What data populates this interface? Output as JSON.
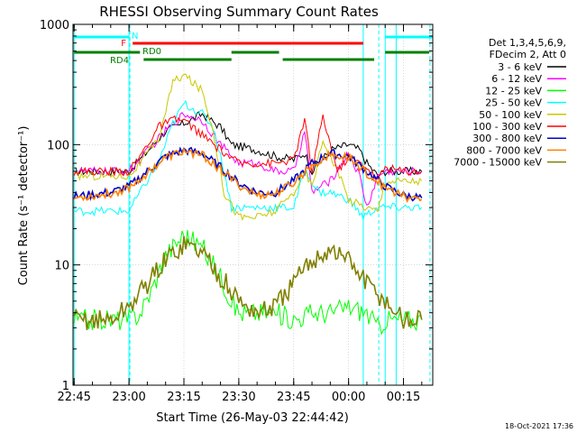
{
  "chart_data": {
    "type": "line",
    "title": "RHESSI Observing Summary Count Rates",
    "xlabel": "Start Time (26-May-03 22:44:42)",
    "ylabel": "Count Rate (s⁻¹ detector⁻¹)",
    "yscale": "log",
    "ylim": [
      1,
      1000
    ],
    "xlim": [
      "22:45",
      "00:23"
    ],
    "yticks": [
      "1",
      "10",
      "100",
      "1000"
    ],
    "xticks": [
      "22:45",
      "23:00",
      "23:15",
      "23:30",
      "23:45",
      "00:00",
      "00:15"
    ],
    "grid": true,
    "legend_header": [
      "Det 1,3,4,5,6,9,",
      "FDecim 2, Att 0"
    ],
    "footer_date": "18-Oct-2021 17:36",
    "series": [
      {
        "name": "3 - 6 keV",
        "color": "#000000",
        "x": [
          "22:45",
          "23:00",
          "23:03",
          "23:10",
          "23:15",
          "23:20",
          "23:25",
          "23:28",
          "23:35",
          "23:40",
          "23:45",
          "23:48",
          "23:50",
          "23:55",
          "00:00",
          "00:03",
          "00:05",
          "00:08",
          "00:10",
          "00:15",
          "00:20"
        ],
        "values": [
          60,
          60,
          75,
          130,
          150,
          180,
          140,
          100,
          90,
          80,
          75,
          85,
          60,
          90,
          100,
          90,
          70,
          55,
          60,
          60,
          60
        ]
      },
      {
        "name": "6 - 12 keV",
        "color": "#ff00ff",
        "x": [
          "22:45",
          "23:00",
          "23:03",
          "23:10",
          "23:15",
          "23:20",
          "23:25",
          "23:30",
          "23:35",
          "23:40",
          "23:45",
          "23:48",
          "23:50",
          "23:55",
          "00:00",
          "00:03",
          "00:05",
          "00:08",
          "00:10",
          "00:15",
          "00:20"
        ],
        "values": [
          60,
          60,
          75,
          130,
          180,
          160,
          100,
          70,
          70,
          60,
          60,
          130,
          40,
          50,
          85,
          55,
          30,
          55,
          60,
          60,
          60
        ]
      },
      {
        "name": "12 - 25 keV",
        "color": "#00ff00",
        "x": [
          "22:45",
          "23:00",
          "23:03",
          "23:06",
          "23:10",
          "23:15",
          "23:20",
          "23:25",
          "23:28",
          "23:30",
          "23:40",
          "23:45",
          "23:50",
          "23:55",
          "00:00",
          "00:05",
          "00:08",
          "00:10",
          "00:15",
          "00:20"
        ],
        "values": [
          3.5,
          3.5,
          4,
          6,
          12,
          18,
          14,
          8,
          5,
          4,
          4,
          3.5,
          4,
          4,
          4.5,
          4,
          3,
          3.5,
          3.5,
          3.5
        ]
      },
      {
        "name": "25 - 50 keV",
        "color": "#00ffff",
        "x": [
          "22:45",
          "23:00",
          "23:03",
          "23:08",
          "23:12",
          "23:15",
          "23:20",
          "23:23",
          "23:26",
          "23:28",
          "23:35",
          "23:40",
          "23:45",
          "23:48",
          "23:52",
          "23:55",
          "00:00",
          "00:04",
          "00:08",
          "00:10",
          "00:15",
          "00:20"
        ],
        "values": [
          28,
          28,
          40,
          70,
          150,
          220,
          180,
          140,
          60,
          30,
          30,
          30,
          30,
          60,
          40,
          40,
          35,
          25,
          30,
          30,
          30,
          30
        ]
      },
      {
        "name": "50 - 100 keV",
        "color": "#c8c800",
        "x": [
          "22:45",
          "23:00",
          "23:03",
          "23:08",
          "23:12",
          "23:15",
          "23:20",
          "23:23",
          "23:26",
          "23:30",
          "23:35",
          "23:40",
          "23:45",
          "23:48",
          "23:50",
          "23:53",
          "23:57",
          "00:00",
          "00:05",
          "00:08",
          "00:10",
          "00:15",
          "00:20"
        ],
        "values": [
          55,
          55,
          70,
          110,
          330,
          380,
          280,
          130,
          40,
          25,
          25,
          28,
          40,
          60,
          45,
          110,
          60,
          35,
          30,
          28,
          50,
          50,
          50
        ]
      },
      {
        "name": "100 - 300 keV",
        "color": "#ff0000",
        "x": [
          "22:45",
          "23:00",
          "23:03",
          "23:08",
          "23:12",
          "23:15",
          "23:20",
          "23:25",
          "23:30",
          "23:40",
          "23:45",
          "23:48",
          "23:50",
          "23:53",
          "23:57",
          "00:00",
          "00:05",
          "00:08",
          "00:10",
          "00:15",
          "00:20"
        ],
        "values": [
          60,
          60,
          80,
          140,
          160,
          160,
          120,
          90,
          70,
          70,
          75,
          160,
          60,
          170,
          60,
          80,
          65,
          50,
          65,
          60,
          60
        ]
      },
      {
        "name": "300 - 800 keV",
        "color": "#0000cc",
        "x": [
          "22:45",
          "22:55",
          "23:00",
          "23:05",
          "23:10",
          "23:15",
          "23:20",
          "23:25",
          "23:30",
          "23:35",
          "23:40",
          "23:45",
          "23:50",
          "23:55",
          "00:00",
          "00:05",
          "00:10",
          "00:15",
          "00:20"
        ],
        "values": [
          37,
          40,
          45,
          60,
          80,
          90,
          85,
          65,
          48,
          40,
          40,
          50,
          70,
          85,
          80,
          60,
          45,
          38,
          36
        ]
      },
      {
        "name": "800 - 7000 keV",
        "color": "#ff8000",
        "x": [
          "22:45",
          "22:55",
          "23:00",
          "23:05",
          "23:10",
          "23:15",
          "23:20",
          "23:25",
          "23:30",
          "23:35",
          "23:40",
          "23:45",
          "23:50",
          "23:55",
          "00:00",
          "00:05",
          "00:10",
          "00:15",
          "00:20"
        ],
        "values": [
          36,
          39,
          44,
          58,
          78,
          88,
          82,
          62,
          46,
          38,
          39,
          48,
          68,
          82,
          78,
          58,
          44,
          37,
          35
        ]
      },
      {
        "name": "7000 - 15000 keV",
        "color": "#808000",
        "x": [
          "22:45",
          "22:55",
          "23:00",
          "23:05",
          "23:10",
          "23:15",
          "23:20",
          "23:25",
          "23:30",
          "23:35",
          "23:40",
          "23:45",
          "23:50",
          "23:55",
          "00:00",
          "00:05",
          "00:10",
          "00:15",
          "00:20"
        ],
        "values": [
          3.5,
          3.5,
          4.5,
          7,
          11,
          15,
          13,
          8,
          5,
          4,
          4.5,
          7,
          11,
          13.5,
          11,
          7,
          5,
          3.5,
          3.5
        ]
      }
    ],
    "state_bars": [
      {
        "label": "N",
        "color": "#00ffff",
        "segments": [
          [
            "22:45",
            "23:00"
          ],
          [
            "00:10",
            "00:23"
          ]
        ]
      },
      {
        "label": "F",
        "color": "#ff0000",
        "segments": [
          [
            "23:01",
            "00:04"
          ]
        ]
      },
      {
        "label": "RD0",
        "color": "#008000",
        "segments": [
          [
            "22:45",
            "23:03"
          ],
          [
            "23:28",
            "23:41"
          ],
          [
            "00:10",
            "00:22"
          ]
        ]
      },
      {
        "label": "RD4",
        "color": "#008000",
        "segments": [
          [
            "23:04",
            "23:28"
          ],
          [
            "23:42",
            "00:07"
          ]
        ]
      }
    ],
    "vlines_solid": [
      "22:45",
      "23:00",
      "00:04",
      "00:10",
      "00:13"
    ],
    "vlines_dashed": [
      "23:00",
      "00:08",
      "00:22"
    ]
  }
}
